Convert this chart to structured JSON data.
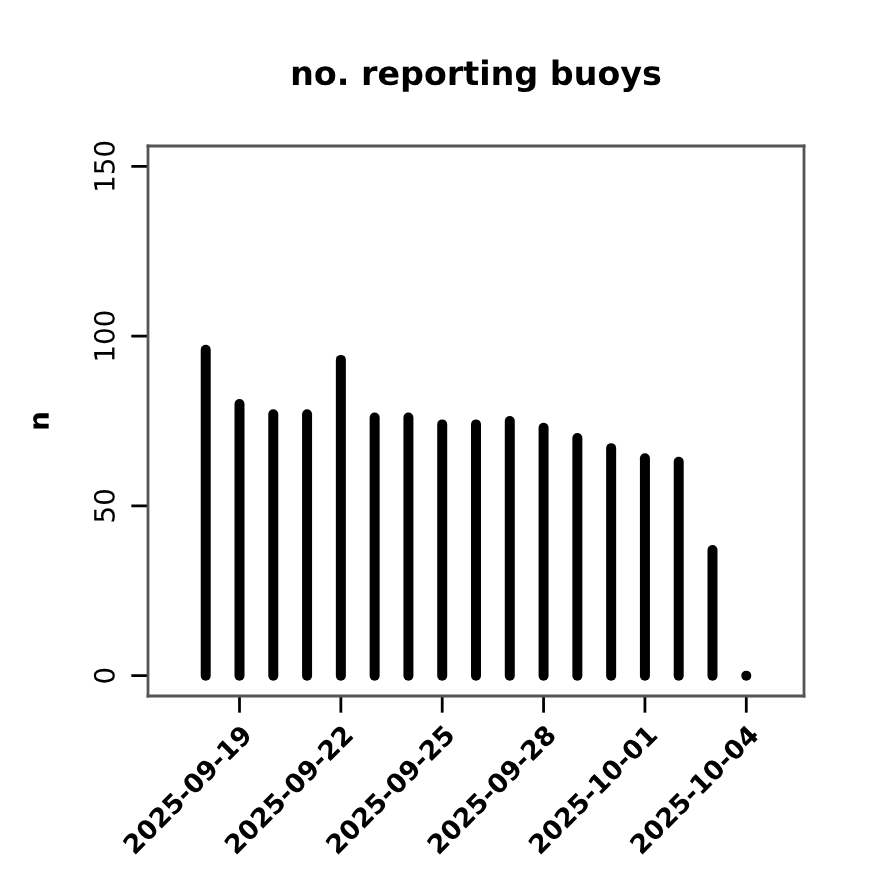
{
  "chart_data": {
    "type": "bar",
    "title": "no. reporting buoys",
    "ylabel": "n",
    "x": [
      "2025-09-18",
      "2025-09-19",
      "2025-09-20",
      "2025-09-21",
      "2025-09-22",
      "2025-09-23",
      "2025-09-24",
      "2025-09-25",
      "2025-09-26",
      "2025-09-27",
      "2025-09-28",
      "2025-09-29",
      "2025-09-30",
      "2025-10-01",
      "2025-10-02",
      "2025-10-03",
      "2025-10-04"
    ],
    "values": [
      96,
      80,
      77,
      77,
      93,
      76,
      76,
      74,
      74,
      75,
      73,
      70,
      67,
      64,
      63,
      37,
      0
    ],
    "color": "#000000",
    "xlim": [
      "2025-09-16T07:00",
      "2025-10-05T17:00"
    ],
    "ylim": [
      -6,
      156
    ],
    "xticks": [
      "2025-09-19",
      "2025-09-22",
      "2025-09-25",
      "2025-09-28",
      "2025-10-01",
      "2025-10-04"
    ],
    "yticks": [
      0,
      50,
      100,
      150
    ]
  }
}
